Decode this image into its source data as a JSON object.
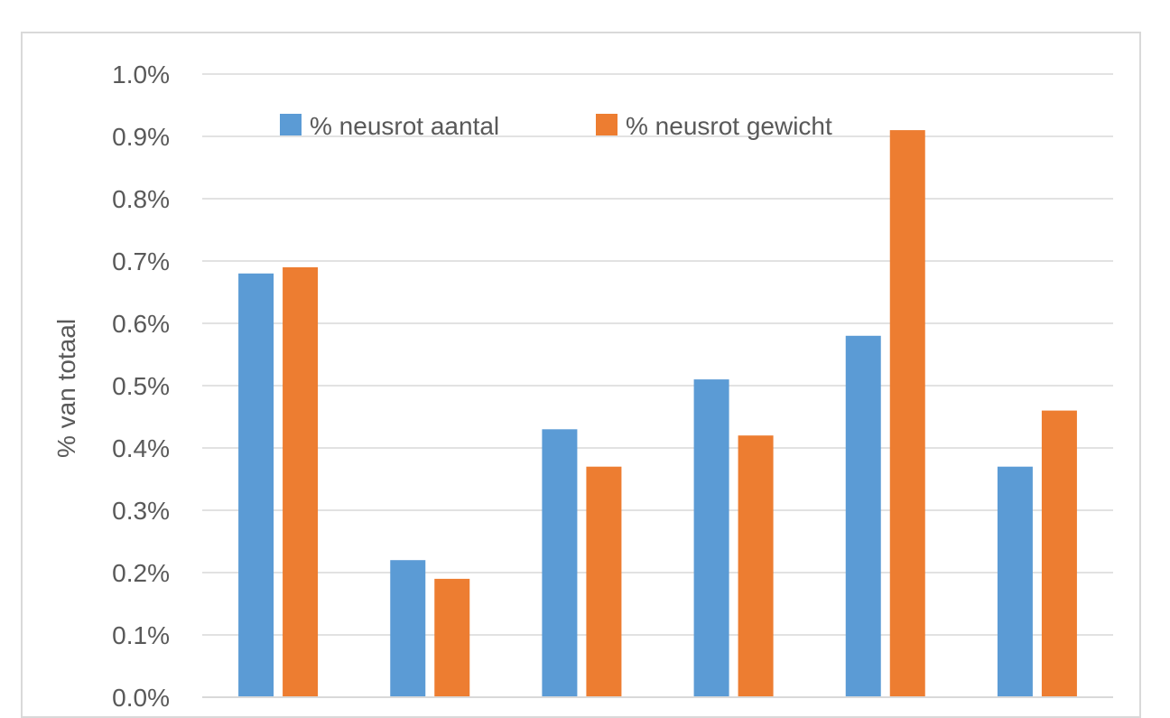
{
  "chart_data": {
    "type": "bar",
    "title": "",
    "xlabel": "",
    "ylabel": "% van totaal",
    "ylim": [
      0,
      1.0
    ],
    "y_ticks": [
      "0.0%",
      "0.1%",
      "0.2%",
      "0.3%",
      "0.4%",
      "0.5%",
      "0.6%",
      "0.7%",
      "0.8%",
      "0.9%",
      "1.0%"
    ],
    "y_tick_values": [
      0,
      0.1,
      0.2,
      0.3,
      0.4,
      0.5,
      0.6,
      0.7,
      0.8,
      0.9,
      1.0
    ],
    "categories": [
      "",
      "",
      "",
      "",
      "",
      ""
    ],
    "grid": true,
    "legend_position": "top",
    "series": [
      {
        "name": "% neusrot aantal",
        "color": "#5b9bd5",
        "values": [
          0.68,
          0.22,
          0.43,
          0.51,
          0.58,
          0.37
        ]
      },
      {
        "name": "% neusrot gewicht",
        "color": "#ed7d31",
        "values": [
          0.69,
          0.19,
          0.37,
          0.42,
          0.91,
          0.46
        ]
      }
    ]
  }
}
